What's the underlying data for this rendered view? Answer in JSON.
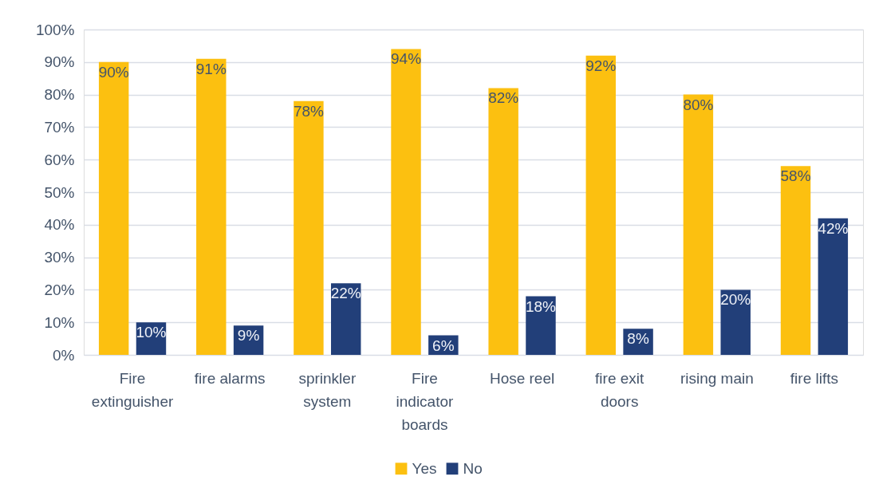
{
  "chart_data": {
    "type": "bar",
    "categories": [
      "Fire extinguisher",
      "fire alarms",
      "sprinkler system",
      "Fire indicator boards",
      "Hose reel",
      "fire exit doors",
      "rising main",
      "fire lifts"
    ],
    "series": [
      {
        "name": "Yes",
        "color": "#fcc010",
        "values": [
          90,
          91,
          78,
          94,
          82,
          92,
          80,
          58
        ],
        "value_labels": [
          "90%",
          "91%",
          "78%",
          "94%",
          "82%",
          "92%",
          "80%",
          "58%"
        ]
      },
      {
        "name": "No",
        "color": "#223f79",
        "values": [
          10,
          9,
          22,
          6,
          18,
          8,
          20,
          42
        ],
        "value_labels": [
          "10%",
          "9%",
          "22%",
          "6%",
          "18%",
          "8%",
          "20%",
          "42%"
        ]
      }
    ],
    "ylim": [
      0,
      100
    ],
    "yticks": [
      {
        "value": 0,
        "label": "0%"
      },
      {
        "value": 10,
        "label": "10%"
      },
      {
        "value": 20,
        "label": "20%"
      },
      {
        "value": 30,
        "label": "30%"
      },
      {
        "value": 40,
        "label": "40%"
      },
      {
        "value": 50,
        "label": "50%"
      },
      {
        "value": 60,
        "label": "60%"
      },
      {
        "value": 70,
        "label": "70%"
      },
      {
        "value": 80,
        "label": "80%"
      },
      {
        "value": 90,
        "label": "90%"
      },
      {
        "value": 100,
        "label": "100%"
      }
    ],
    "grid": "y",
    "legend": "bottom"
  }
}
